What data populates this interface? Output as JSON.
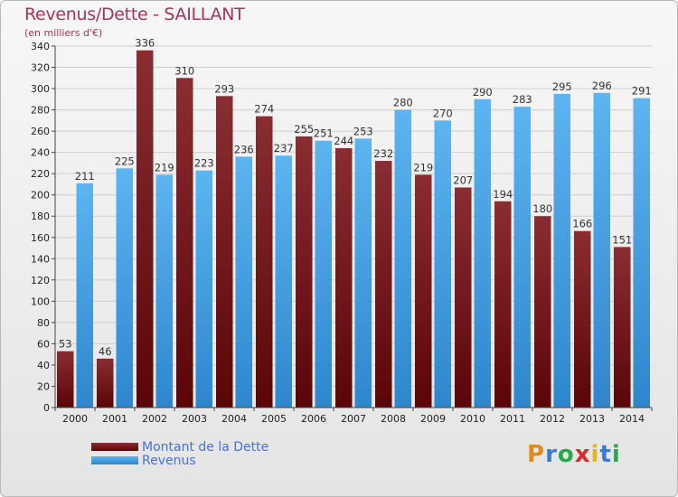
{
  "header": {
    "title": "Revenus/Dette - SAILLANT",
    "subtitle": "(en milliers d'€)"
  },
  "legend": {
    "items": [
      {
        "label": "Montant de la Dette",
        "color": "#7a1e22"
      },
      {
        "label": "Revenus",
        "color": "#4da6e8"
      }
    ]
  },
  "logo": {
    "letters": [
      "P",
      "r",
      "o",
      "x",
      "i",
      "t",
      "i"
    ],
    "colors": [
      "#e08a1e",
      "#3a7bd5",
      "#2aa84a",
      "#d62d2d",
      "#e0b81e",
      "#3a7bd5",
      "#2aa84a"
    ]
  },
  "chart_data": {
    "type": "bar",
    "categories": [
      "2000",
      "2001",
      "2002",
      "2003",
      "2004",
      "2005",
      "2006",
      "2007",
      "2008",
      "2009",
      "2010",
      "2011",
      "2012",
      "2013",
      "2014"
    ],
    "series": [
      {
        "name": "Montant de la Dette",
        "values": [
          53,
          46,
          336,
          310,
          293,
          274,
          255,
          244,
          232,
          219,
          207,
          194,
          180,
          166,
          151
        ],
        "color": "#7a1e22"
      },
      {
        "name": "Revenus",
        "values": [
          211,
          225,
          219,
          223,
          236,
          237,
          251,
          253,
          280,
          270,
          290,
          283,
          295,
          296,
          291
        ],
        "color": "#4da6e8"
      }
    ],
    "ylim": [
      0,
      340
    ],
    "ytick_step": 20,
    "grid": true,
    "legend_position": "bottom-left"
  }
}
